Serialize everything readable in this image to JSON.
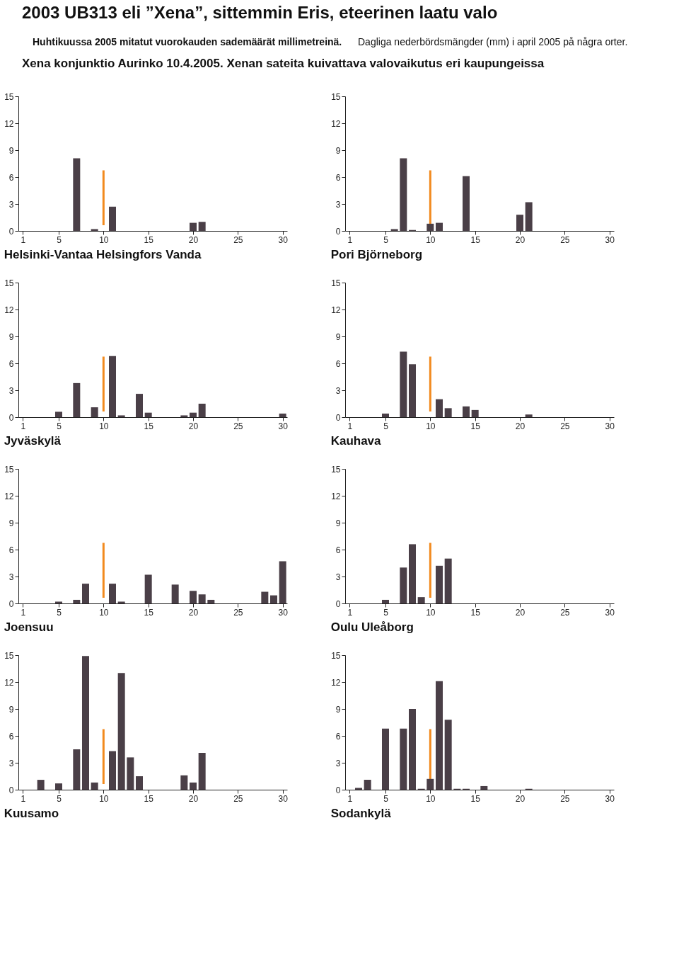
{
  "chart_data": [
    {
      "type": "bar",
      "title": "Helsinki-Vantaa Helsingfors Vanda",
      "annotations": [
        "2003 UB313 eli ”Xena”, sittemmin Eris,  eteerinen laatu valo",
        "Huhtikuussa 2005 mitatut vuorokauden sademäärät millimetreinä.",
        "Dagliga nederbördsmängder (mm) i april 2005 på några orter.",
        "Xena konjunktio Aurinko 10.4.2005. Xenan sateita kuivattava valovaikutus eri kaupungeissa"
      ],
      "x": [
        7,
        9,
        11,
        20,
        21
      ],
      "values": [
        8.1,
        0.2,
        2.7,
        0.9,
        1.0
      ],
      "color": "#4a3f47",
      "xlim": [
        0.5,
        30.5
      ],
      "xticks": [
        1,
        5,
        10,
        15,
        20,
        25,
        30
      ],
      "ylim": [
        0,
        15
      ],
      "yticks": [
        0,
        3,
        6,
        9,
        12,
        15
      ],
      "ref_lines": [
        {
          "axis": "x",
          "value": 10,
          "color": "#f28a1e"
        }
      ]
    },
    {
      "type": "bar",
      "title": "Pori Björneborg",
      "x": [
        6,
        7,
        8,
        10,
        11,
        14,
        20,
        21
      ],
      "values": [
        0.2,
        8.1,
        0.1,
        0.8,
        0.9,
        6.1,
        1.8,
        3.2
      ],
      "color": "#4a3f47",
      "xlim": [
        0.5,
        30.5
      ],
      "xticks": [
        1,
        5,
        10,
        15,
        20,
        25,
        30
      ],
      "ylim": [
        0,
        15
      ],
      "yticks": [
        0,
        3,
        6,
        9,
        12,
        15
      ],
      "ref_lines": [
        {
          "axis": "x",
          "value": 10,
          "color": "#f28a1e"
        }
      ]
    },
    {
      "type": "bar",
      "title": "Jyväskylä",
      "x": [
        5,
        7,
        9,
        11,
        12,
        14,
        15,
        19,
        20,
        21,
        30
      ],
      "values": [
        0.6,
        3.8,
        1.1,
        6.8,
        0.2,
        2.6,
        0.5,
        0.2,
        0.5,
        1.5,
        0.4
      ],
      "color": "#4a3f47",
      "xlim": [
        0.5,
        30.5
      ],
      "xticks": [
        1,
        5,
        10,
        15,
        20,
        25,
        30
      ],
      "ylim": [
        0,
        15
      ],
      "yticks": [
        0,
        3,
        6,
        9,
        12,
        15
      ],
      "ref_lines": [
        {
          "axis": "x",
          "value": 10,
          "color": "#f28a1e"
        }
      ]
    },
    {
      "type": "bar",
      "title": "Kauhava",
      "x": [
        5,
        7,
        8,
        11,
        12,
        14,
        15,
        21
      ],
      "values": [
        0.4,
        7.3,
        5.9,
        2.0,
        1.0,
        1.2,
        0.8,
        0.3
      ],
      "color": "#4a3f47",
      "xlim": [
        0.5,
        30.5
      ],
      "xticks": [
        1,
        5,
        10,
        15,
        20,
        25,
        30
      ],
      "ylim": [
        0,
        15
      ],
      "yticks": [
        0,
        3,
        6,
        9,
        12,
        15
      ],
      "ref_lines": [
        {
          "axis": "x",
          "value": 10,
          "color": "#f28a1e"
        }
      ]
    },
    {
      "type": "bar",
      "title": "Joensuu",
      "x": [
        5,
        7,
        8,
        11,
        12,
        15,
        18,
        20,
        21,
        22,
        28,
        29,
        30
      ],
      "values": [
        0.2,
        0.4,
        2.2,
        2.2,
        0.2,
        3.2,
        2.1,
        1.4,
        1.0,
        0.4,
        1.3,
        0.9,
        4.7
      ],
      "color": "#4a3f47",
      "xlim": [
        0.5,
        30.5
      ],
      "xticks": [
        1,
        5,
        10,
        15,
        20,
        25,
        30
      ],
      "ylim": [
        0,
        15
      ],
      "yticks": [
        0,
        3,
        6,
        9,
        12,
        15
      ],
      "ref_lines": [
        {
          "axis": "x",
          "value": 10,
          "color": "#f28a1e"
        }
      ]
    },
    {
      "type": "bar",
      "title": "Oulu Uleåborg",
      "x": [
        5,
        7,
        8,
        9,
        11,
        12
      ],
      "values": [
        0.4,
        4.0,
        6.6,
        0.7,
        4.2,
        5.0
      ],
      "color": "#4a3f47",
      "xlim": [
        0.5,
        30.5
      ],
      "xticks": [
        1,
        5,
        10,
        15,
        20,
        25,
        30
      ],
      "ylim": [
        0,
        15
      ],
      "yticks": [
        0,
        3,
        6,
        9,
        12,
        15
      ],
      "ref_lines": [
        {
          "axis": "x",
          "value": 10,
          "color": "#f28a1e"
        }
      ]
    },
    {
      "type": "bar",
      "title": "Kuusamo",
      "x": [
        3,
        5,
        7,
        8,
        9,
        11,
        12,
        13,
        14,
        19,
        20,
        21
      ],
      "values": [
        1.1,
        0.7,
        4.5,
        14.9,
        0.8,
        4.3,
        13.0,
        3.6,
        1.5,
        1.6,
        0.8,
        4.1
      ],
      "color": "#4a3f47",
      "xlim": [
        0.5,
        30.5
      ],
      "xticks": [
        1,
        5,
        10,
        15,
        20,
        25,
        30
      ],
      "ylim": [
        0,
        15
      ],
      "yticks": [
        0,
        3,
        6,
        9,
        12,
        15
      ],
      "ref_lines": [
        {
          "axis": "x",
          "value": 10,
          "color": "#f28a1e"
        }
      ]
    },
    {
      "type": "bar",
      "title": "Sodankylä",
      "x": [
        2,
        3,
        5,
        7,
        8,
        9,
        10,
        11,
        12,
        13,
        14,
        16,
        21
      ],
      "values": [
        0.2,
        1.1,
        6.8,
        6.8,
        9.0,
        0.1,
        1.2,
        12.1,
        7.8,
        0.1,
        0.1,
        0.4,
        0.1
      ],
      "color": "#4a3f47",
      "xlim": [
        0.5,
        30.5
      ],
      "xticks": [
        1,
        5,
        10,
        15,
        20,
        25,
        30
      ],
      "ylim": [
        0,
        15
      ],
      "yticks": [
        0,
        3,
        6,
        9,
        12,
        15
      ],
      "ref_lines": [
        {
          "axis": "x",
          "value": 10,
          "color": "#f28a1e"
        }
      ]
    }
  ]
}
